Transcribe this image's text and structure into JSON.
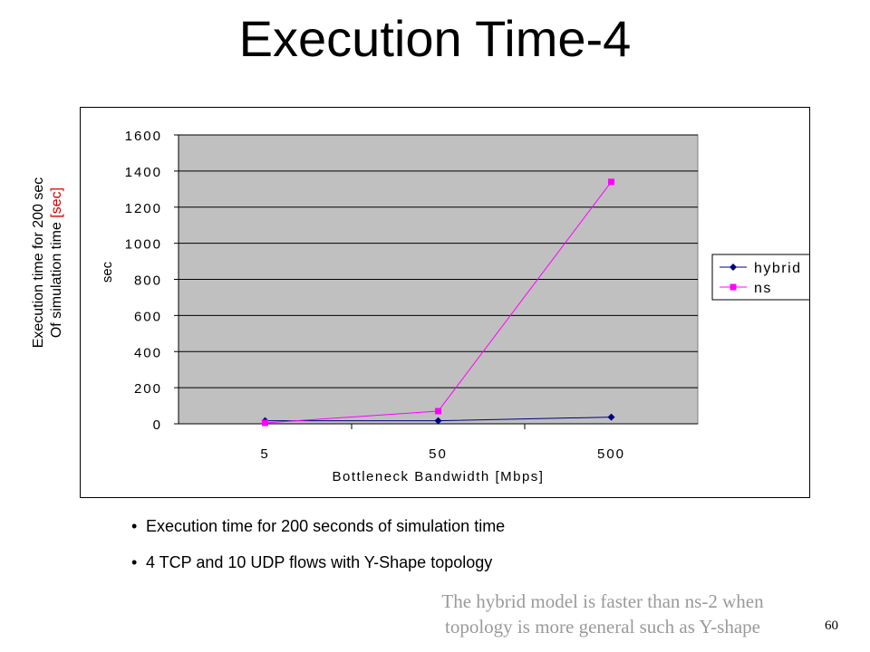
{
  "slide": {
    "title": "Execution Time-4",
    "side_label": {
      "line1": "Execution time for 200 sec",
      "line2_main": "Of simulation time ",
      "line2_unit": "[sec]"
    },
    "bullets": [
      "Execution time for 200 seconds of simulation time",
      "4 TCP and 10 UDP flows with Y-Shape topology"
    ],
    "note_line1": "The hybrid model is faster than ns-2 when",
    "note_line2": "topology is more general such as Y-shape",
    "slide_number": "60",
    "bullet_char": "•"
  },
  "chart_data": {
    "type": "line",
    "categories": [
      "5",
      "50",
      "500"
    ],
    "series": [
      {
        "name": "hybrid",
        "values": [
          17,
          17,
          37
        ],
        "color": "#000080",
        "marker": "diamond"
      },
      {
        "name": "ns",
        "values": [
          5,
          70,
          1340
        ],
        "color": "#ff00ff",
        "marker": "square"
      }
    ],
    "xlabel": "Bottleneck Bandwidth [Mbps]",
    "ylabel": "sec",
    "ylim": [
      0,
      1600
    ],
    "yticks": [
      0,
      200,
      400,
      600,
      800,
      1000,
      1200,
      1400,
      1600
    ],
    "grid": true,
    "plot_background": "#c0c0c0",
    "legend_position": "right"
  }
}
